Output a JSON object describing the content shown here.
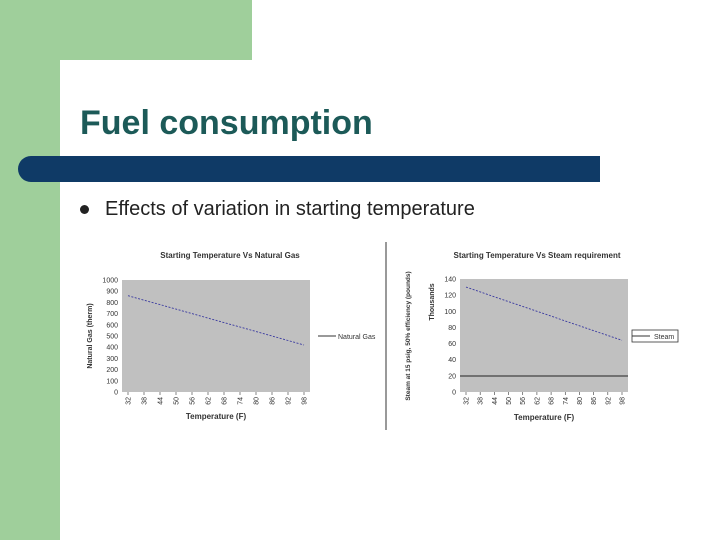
{
  "slide": {
    "title": "Fuel consumption",
    "bullet": "Effects of variation in starting temperature"
  },
  "colors": {
    "accent_green": "#9fcf9b",
    "title_teal": "#1c5a58",
    "bar_navy": "#0f3a66",
    "plot_bg": "#c0c0c0",
    "series_line": "#3a3aa0"
  },
  "chart_data": [
    {
      "type": "line",
      "title": "Starting Temperature Vs Natural Gas",
      "xlabel": "Temperature (F)",
      "ylabel": "Natural Gas (therm)",
      "ylim": [
        0,
        1000
      ],
      "yticks": [
        "1000",
        "900",
        "800",
        "700",
        "600",
        "500",
        "400",
        "300",
        "200",
        "100",
        "0"
      ],
      "categories": [
        "32",
        "38",
        "44",
        "50",
        "56",
        "62",
        "68",
        "74",
        "80",
        "86",
        "92",
        "98"
      ],
      "series": [
        {
          "name": "Natural Gas",
          "values": [
            860,
            820,
            780,
            740,
            700,
            660,
            620,
            580,
            540,
            500,
            460,
            420
          ]
        }
      ],
      "grid": false,
      "legend": "right"
    },
    {
      "type": "line",
      "title": "Starting Temperature Vs Steam requirement",
      "xlabel": "Temperature (F)",
      "ylabel": "Steam at 15 psig, 50% efficiency (pounds)",
      "ylabel2": "Thousands",
      "ylim": [
        0,
        140
      ],
      "yticks": [
        "140",
        "120",
        "100",
        "80",
        "60",
        "40",
        "20",
        "0"
      ],
      "categories": [
        "32",
        "38",
        "44",
        "50",
        "56",
        "62",
        "68",
        "74",
        "80",
        "86",
        "92",
        "98"
      ],
      "series": [
        {
          "name": "Steam",
          "values": [
            130,
            124,
            118,
            112,
            106,
            100,
            94,
            88,
            82,
            76,
            70,
            64
          ]
        }
      ],
      "grid": false,
      "legend": "right"
    }
  ]
}
